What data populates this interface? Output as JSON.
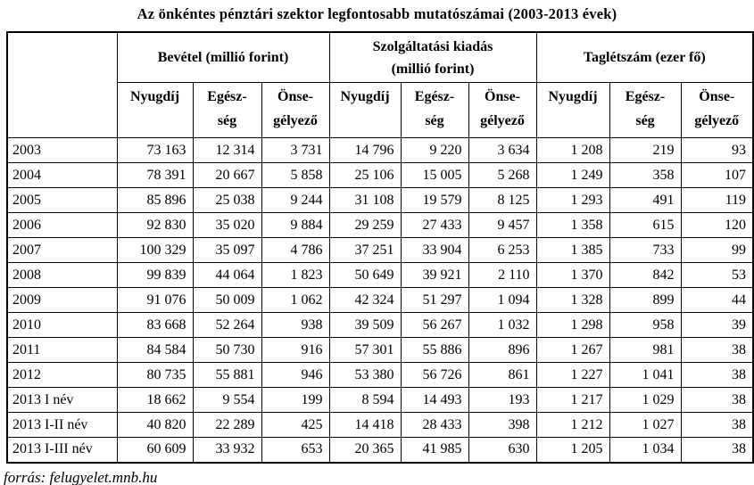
{
  "chart_data": {
    "type": "table",
    "title": "Az önkéntes pénztári szektor legfontosabb mutatószámai (2003-2013 évek)",
    "source": "forrás: felugyelet.mnb.hu",
    "column_groups": [
      "Bevétel (millió forint)",
      "Szolgáltatási kiadás\n(millió forint)",
      "Taglétszám (ezer fő)"
    ],
    "sub_columns": [
      "Nyugdíj",
      "Egész-\nség",
      "Önse-\ngélyező"
    ],
    "rows": [
      {
        "label": "2003",
        "values": [
          "73 163",
          "12 314",
          "3 731",
          "14 796",
          "9 220",
          "3 634",
          "1 208",
          "219",
          "93"
        ]
      },
      {
        "label": "2004",
        "values": [
          "78 391",
          "20 667",
          "5 858",
          "25 106",
          "15 005",
          "5 268",
          "1 249",
          "358",
          "107"
        ]
      },
      {
        "label": "2005",
        "values": [
          "85 896",
          "25 038",
          "9 244",
          "31 108",
          "19 579",
          "8 125",
          "1 293",
          "491",
          "119"
        ]
      },
      {
        "label": "2006",
        "values": [
          "92 830",
          "35 020",
          "9 884",
          "29 259",
          "27 433",
          "9 457",
          "1 358",
          "615",
          "120"
        ]
      },
      {
        "label": "2007",
        "values": [
          "100 329",
          "35 097",
          "4 786",
          "37 251",
          "33 904",
          "6 253",
          "1 385",
          "733",
          "99"
        ]
      },
      {
        "label": "2008",
        "values": [
          "99 839",
          "44 064",
          "1 823",
          "50 649",
          "39 921",
          "2 110",
          "1 370",
          "842",
          "53"
        ]
      },
      {
        "label": "2009",
        "values": [
          "91 076",
          "50 009",
          "1 062",
          "42 324",
          "51 297",
          "1 094",
          "1 328",
          "899",
          "44"
        ]
      },
      {
        "label": "2010",
        "values": [
          "83 668",
          "52 264",
          "938",
          "39 509",
          "56 267",
          "1 032",
          "1 298",
          "958",
          "39"
        ]
      },
      {
        "label": "2011",
        "values": [
          "84 584",
          "50 730",
          "916",
          "57 301",
          "55 886",
          "896",
          "1 267",
          "981",
          "38"
        ]
      },
      {
        "label": "2012",
        "values": [
          "80 735",
          "55 881",
          "946",
          "53 380",
          "56 726",
          "861",
          "1 227",
          "1 041",
          "38"
        ]
      },
      {
        "label": "2013 I név",
        "values": [
          "18 662",
          "9 554",
          "199",
          "8 594",
          "14 493",
          "193",
          "1 217",
          "1 029",
          "38"
        ]
      },
      {
        "label": "2013 I-II név",
        "values": [
          "40 820",
          "22 289",
          "425",
          "14 418",
          "28 433",
          "398",
          "1 212",
          "1 027",
          "38"
        ]
      },
      {
        "label": "2013 I-III név",
        "values": [
          "60 609",
          "33 932",
          "653",
          "20 365",
          "41 985",
          "630",
          "1 205",
          "1 034",
          "38"
        ]
      }
    ]
  }
}
